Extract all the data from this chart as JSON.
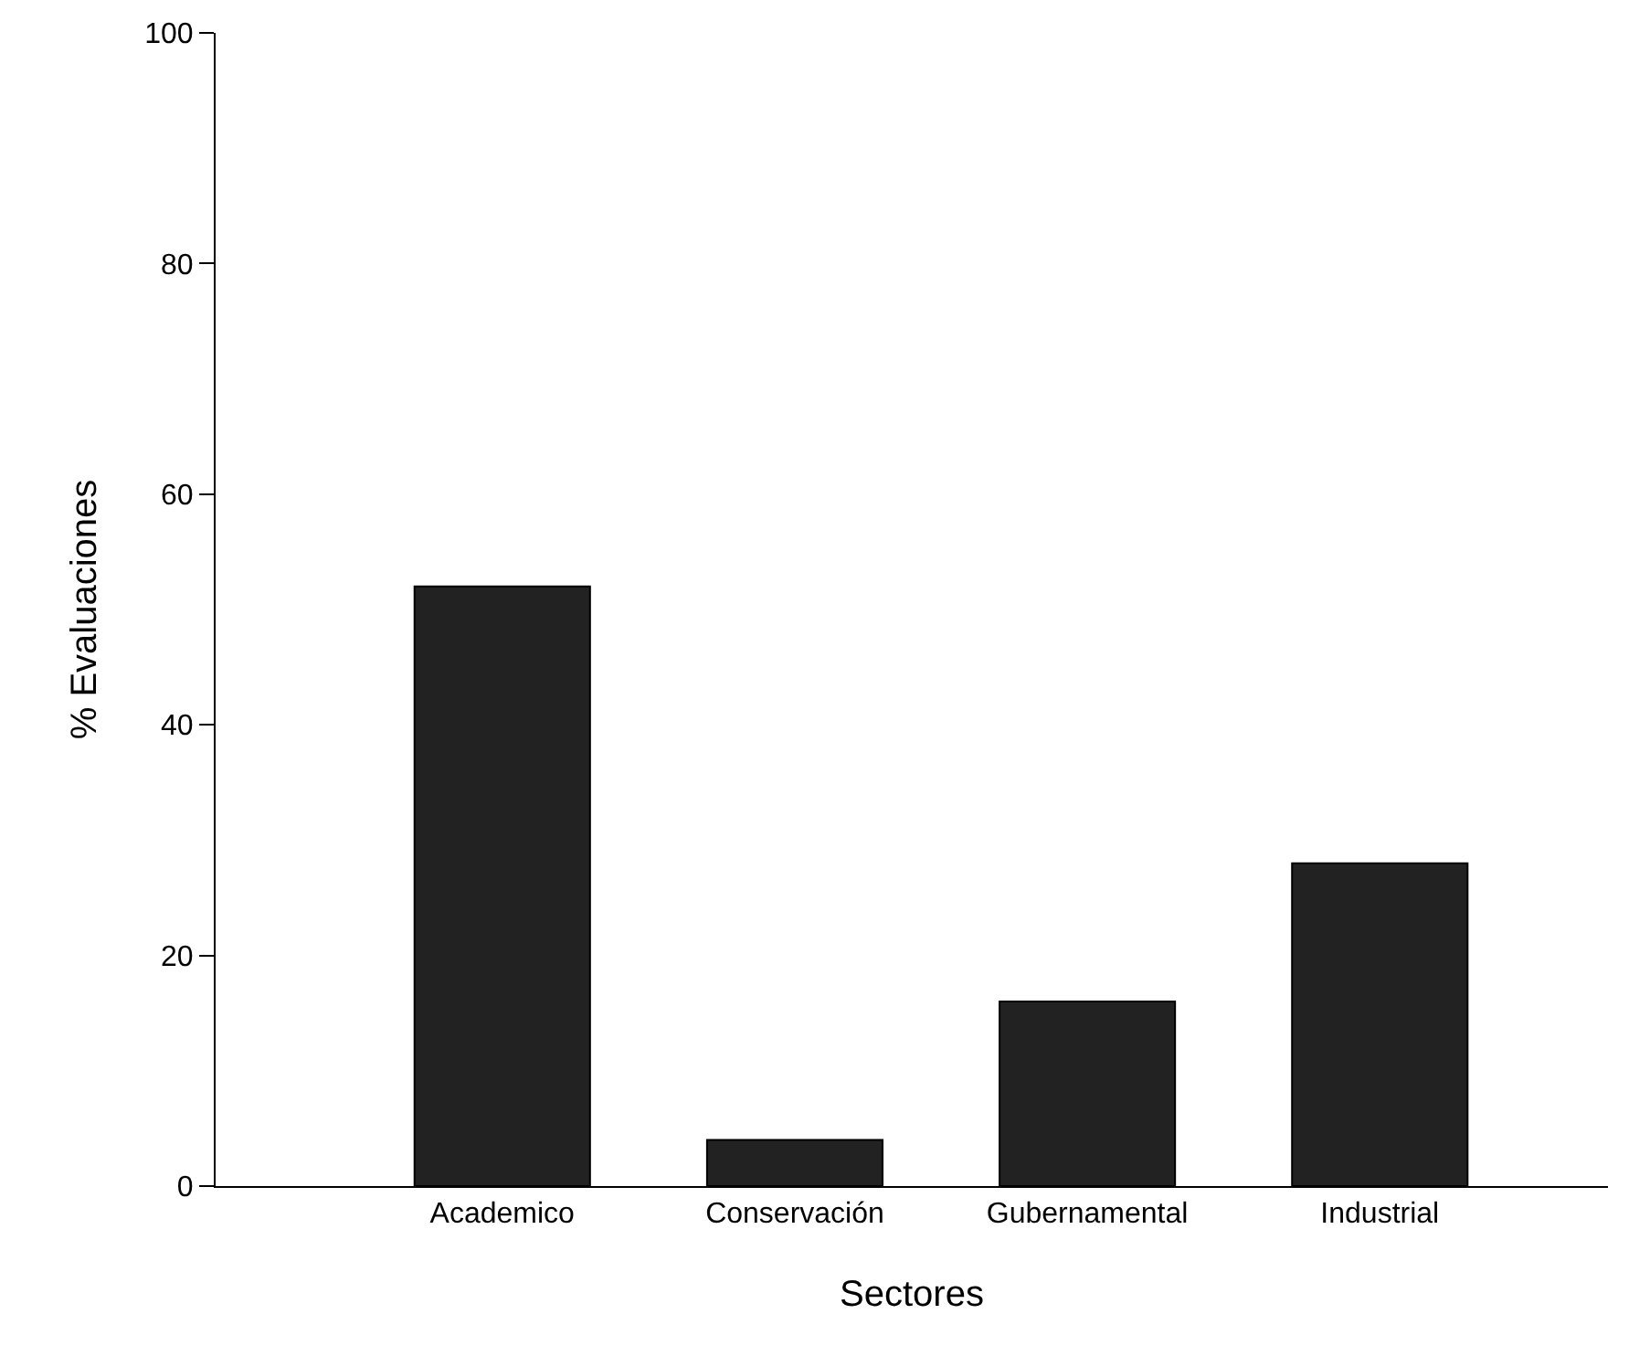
{
  "chart_data": {
    "type": "bar",
    "xlabel": "Sectores",
    "ylabel": "% Evaluaciones",
    "categories": [
      "Academico",
      "Conservación",
      "Gubernamental",
      "Industrial"
    ],
    "values": [
      52,
      4,
      16,
      28
    ],
    "color": "#222222",
    "ylim": [
      0,
      100
    ],
    "yticks": [
      0,
      20,
      40,
      60,
      80,
      100
    ]
  }
}
